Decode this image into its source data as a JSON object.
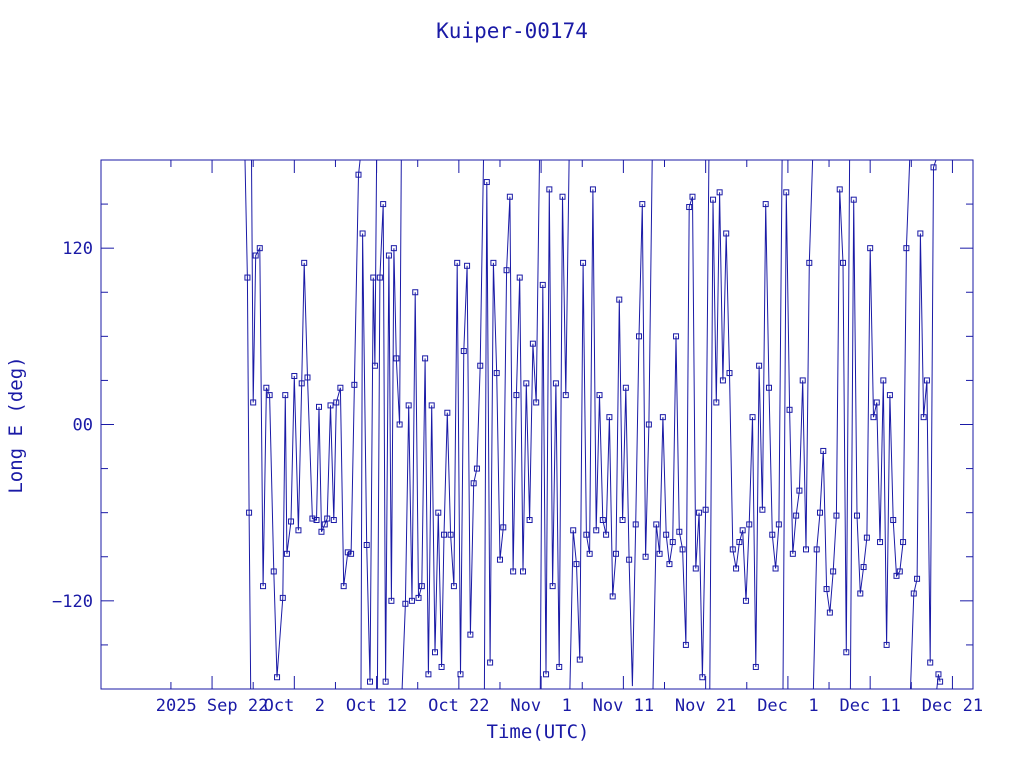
{
  "chart_data": {
    "type": "scatter",
    "title": "Kuiper-00174",
    "xlabel": "Time(UTC)",
    "ylabel": "Long E (deg)",
    "colors": {
      "axes": "#1a1aa6",
      "series": "#1a1aa6"
    },
    "x_start": "2025-09-13",
    "xlim": [
      -4.5,
      101.5
    ],
    "ylim": [
      -180,
      180
    ],
    "x_tick_labels": [
      "2025 Sep 22",
      "Oct  2",
      "Oct 12",
      "Oct 22",
      "Nov  1",
      "Nov 11",
      "Nov 21",
      "Dec  1",
      "Dec 11",
      "Dec 21"
    ],
    "x_tick_days": [
      9,
      19,
      29,
      39,
      49,
      59,
      69,
      79,
      89,
      99
    ],
    "y_ticks": [
      -120,
      0,
      120
    ],
    "y_tick_labels": [
      "−120",
      "00",
      "120"
    ],
    "series": [
      {
        "name": "Long E",
        "wrap_segments": [
          [
            [
              13.0,
              180
            ],
            [
              13.3,
              100
            ],
            [
              13.5,
              -60
            ],
            [
              13.7,
              -180
            ]
          ],
          [
            [
              13.8,
              180
            ],
            [
              14.0,
              15
            ],
            [
              14.3,
              115
            ],
            [
              14.8,
              120
            ],
            [
              15.2,
              -110
            ],
            [
              15.6,
              25
            ],
            [
              16.0,
              20
            ],
            [
              16.5,
              -100
            ],
            [
              16.9,
              -172
            ],
            [
              17.6,
              -118
            ],
            [
              17.9,
              20
            ],
            [
              18.1,
              -88
            ],
            [
              18.6,
              -66
            ],
            [
              19.0,
              33
            ],
            [
              19.5,
              -72
            ],
            [
              19.9,
              28
            ],
            [
              20.2,
              110
            ],
            [
              20.6,
              32
            ],
            [
              21.2,
              -64
            ],
            [
              21.7,
              -65
            ],
            [
              22.0,
              12
            ],
            [
              22.3,
              -73
            ],
            [
              22.7,
              -68
            ],
            [
              23.0,
              -64
            ],
            [
              23.4,
              13
            ],
            [
              23.8,
              -65
            ],
            [
              24.1,
              15
            ],
            [
              24.6,
              25
            ],
            [
              25.0,
              -110
            ],
            [
              25.5,
              -87
            ],
            [
              25.9,
              -88
            ],
            [
              26.3,
              27
            ],
            [
              26.8,
              170
            ],
            [
              27.0,
              180
            ]
          ],
          [
            [
              27.1,
              -180
            ],
            [
              27.3,
              130
            ],
            [
              27.8,
              -82
            ],
            [
              28.2,
              -175
            ],
            [
              28.6,
              100
            ],
            [
              28.8,
              40
            ],
            [
              29.0,
              180
            ]
          ],
          [
            [
              29.1,
              -180
            ],
            [
              29.4,
              100
            ],
            [
              29.8,
              150
            ],
            [
              30.1,
              -175
            ],
            [
              30.5,
              115
            ],
            [
              30.8,
              -120
            ],
            [
              31.1,
              120
            ],
            [
              31.4,
              45
            ],
            [
              31.8,
              0
            ],
            [
              32.0,
              180
            ]
          ],
          [
            [
              32.1,
              -180
            ],
            [
              32.5,
              -122
            ],
            [
              32.9,
              13
            ],
            [
              33.3,
              -120
            ],
            [
              33.7,
              90
            ],
            [
              34.1,
              -118
            ],
            [
              34.5,
              -110
            ],
            [
              34.9,
              45
            ],
            [
              35.3,
              -170
            ],
            [
              35.7,
              13
            ],
            [
              36.1,
              -155
            ],
            [
              36.5,
              -60
            ],
            [
              36.9,
              -165
            ],
            [
              37.2,
              -75
            ],
            [
              37.6,
              8
            ],
            [
              38.0,
              -75
            ],
            [
              38.4,
              -110
            ],
            [
              38.8,
              110
            ],
            [
              39.2,
              -170
            ],
            [
              39.6,
              50
            ],
            [
              40.0,
              108
            ],
            [
              40.4,
              -143
            ],
            [
              40.8,
              -40
            ],
            [
              41.2,
              -30
            ],
            [
              41.6,
              40
            ],
            [
              42.0,
              180
            ]
          ],
          [
            [
              42.1,
              -180
            ],
            [
              42.4,
              165
            ],
            [
              42.8,
              -162
            ],
            [
              43.2,
              110
            ],
            [
              43.6,
              35
            ],
            [
              44.0,
              -92
            ],
            [
              44.4,
              -70
            ],
            [
              44.8,
              105
            ],
            [
              45.2,
              155
            ],
            [
              45.6,
              -100
            ],
            [
              46.0,
              20
            ],
            [
              46.4,
              100
            ],
            [
              46.8,
              -100
            ],
            [
              47.2,
              28
            ],
            [
              47.6,
              -65
            ],
            [
              48.0,
              55
            ],
            [
              48.4,
              15
            ],
            [
              48.8,
              180
            ]
          ],
          [
            [
              48.9,
              -180
            ],
            [
              49.2,
              95
            ],
            [
              49.6,
              -170
            ],
            [
              50.0,
              160
            ],
            [
              50.4,
              -110
            ],
            [
              50.8,
              28
            ],
            [
              51.2,
              -165
            ],
            [
              51.6,
              155
            ],
            [
              52.0,
              20
            ],
            [
              52.4,
              180
            ]
          ],
          [
            [
              52.5,
              -180
            ],
            [
              52.9,
              -72
            ],
            [
              53.3,
              -95
            ],
            [
              53.7,
              -160
            ],
            [
              54.1,
              110
            ],
            [
              54.5,
              -75
            ],
            [
              54.9,
              -88
            ],
            [
              55.3,
              160
            ],
            [
              55.7,
              -72
            ],
            [
              56.1,
              20
            ],
            [
              56.5,
              -65
            ],
            [
              56.9,
              -75
            ],
            [
              57.3,
              5
            ],
            [
              57.7,
              -117
            ],
            [
              58.1,
              -88
            ],
            [
              58.5,
              85
            ],
            [
              58.9,
              -65
            ],
            [
              59.3,
              25
            ],
            [
              59.7,
              -92
            ],
            [
              60.1,
              -178
            ],
            [
              60.5,
              -68
            ],
            [
              60.9,
              60
            ],
            [
              61.3,
              150
            ],
            [
              61.7,
              -90
            ],
            [
              62.1,
              0
            ],
            [
              62.5,
              180
            ]
          ],
          [
            [
              62.6,
              -180
            ],
            [
              63.0,
              -68
            ],
            [
              63.4,
              -88
            ],
            [
              63.8,
              5
            ],
            [
              64.2,
              -75
            ],
            [
              64.6,
              -95
            ],
            [
              65.0,
              -80
            ],
            [
              65.4,
              60
            ],
            [
              65.8,
              -73
            ],
            [
              66.2,
              -85
            ],
            [
              66.6,
              -150
            ],
            [
              67.0,
              148
            ],
            [
              67.4,
              155
            ],
            [
              67.8,
              -98
            ],
            [
              68.2,
              -60
            ],
            [
              68.6,
              -172
            ],
            [
              69.0,
              -58
            ],
            [
              69.4,
              180
            ]
          ],
          [
            [
              69.5,
              -180
            ],
            [
              69.9,
              153
            ],
            [
              70.3,
              15
            ],
            [
              70.7,
              158
            ],
            [
              71.1,
              30
            ],
            [
              71.5,
              130
            ],
            [
              71.9,
              35
            ],
            [
              72.3,
              -85
            ],
            [
              72.7,
              -98
            ],
            [
              73.1,
              -80
            ],
            [
              73.5,
              -72
            ],
            [
              73.9,
              -120
            ],
            [
              74.3,
              -68
            ],
            [
              74.7,
              5
            ],
            [
              75.1,
              -165
            ],
            [
              75.5,
              40
            ],
            [
              75.9,
              -58
            ],
            [
              76.3,
              150
            ],
            [
              76.7,
              25
            ],
            [
              77.1,
              -75
            ],
            [
              77.5,
              -98
            ],
            [
              77.9,
              -68
            ],
            [
              78.3,
              180
            ]
          ],
          [
            [
              78.4,
              -180
            ],
            [
              78.8,
              158
            ],
            [
              79.2,
              10
            ],
            [
              79.6,
              -88
            ],
            [
              80.0,
              -62
            ],
            [
              80.4,
              -45
            ],
            [
              80.8,
              30
            ],
            [
              81.2,
              -85
            ],
            [
              81.6,
              110
            ],
            [
              82.0,
              180
            ]
          ],
          [
            [
              82.1,
              -180
            ],
            [
              82.5,
              -85
            ],
            [
              82.9,
              -60
            ],
            [
              83.3,
              -18
            ],
            [
              83.7,
              -112
            ],
            [
              84.1,
              -128
            ],
            [
              84.5,
              -100
            ],
            [
              84.9,
              -62
            ],
            [
              85.3,
              160
            ],
            [
              85.7,
              110
            ],
            [
              86.1,
              -155
            ],
            [
              86.5,
              180
            ]
          ],
          [
            [
              86.6,
              -180
            ],
            [
              87.0,
              153
            ],
            [
              87.4,
              -62
            ],
            [
              87.8,
              -115
            ],
            [
              88.2,
              -97
            ],
            [
              88.6,
              -77
            ],
            [
              89.0,
              120
            ],
            [
              89.4,
              5
            ],
            [
              89.8,
              15
            ],
            [
              90.2,
              -80
            ],
            [
              90.6,
              30
            ],
            [
              91.0,
              -150
            ],
            [
              91.4,
              20
            ],
            [
              91.8,
              -65
            ],
            [
              92.2,
              -103
            ],
            [
              92.6,
              -100
            ],
            [
              93.0,
              -80
            ],
            [
              93.4,
              120
            ],
            [
              93.8,
              180
            ]
          ],
          [
            [
              93.9,
              -180
            ],
            [
              94.3,
              -115
            ],
            [
              94.7,
              -105
            ],
            [
              95.1,
              130
            ],
            [
              95.5,
              5
            ],
            [
              95.9,
              30
            ],
            [
              96.3,
              -162
            ],
            [
              96.7,
              175
            ],
            [
              97.0,
              180
            ]
          ],
          [
            [
              97.1,
              -180
            ],
            [
              97.3,
              -170
            ],
            [
              97.5,
              -175
            ]
          ]
        ]
      }
    ]
  }
}
